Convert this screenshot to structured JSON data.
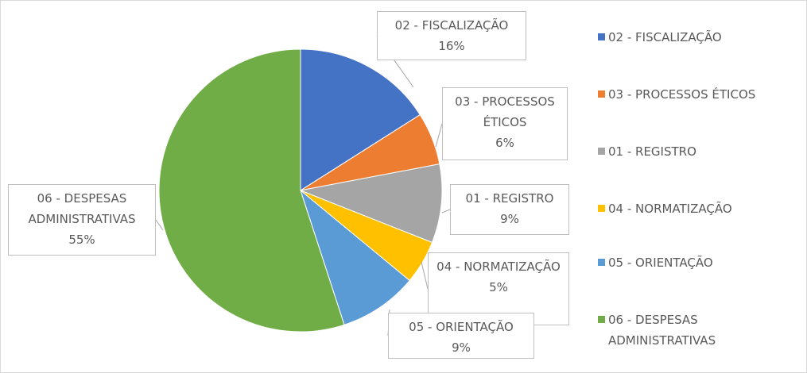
{
  "chart_data": {
    "type": "pie",
    "categories": [
      "02 - FISCALIZAÇÃO",
      "03 - PROCESSOS ÉTICOS",
      "01 - REGISTRO",
      "04 - NORMATIZAÇÃO",
      "05 - ORIENTAÇÃO",
      "06 - DESPESAS ADMINISTRATIVAS"
    ],
    "values": [
      16,
      6,
      9,
      5,
      9,
      55
    ],
    "value_labels": [
      "16%",
      "6%",
      "9%",
      "5%",
      "9%",
      "55%"
    ],
    "colors": [
      "#4472c4",
      "#ed7d31",
      "#a5a5a5",
      "#ffc000",
      "#5b9bd5",
      "#70ad47"
    ],
    "legend": "right"
  }
}
